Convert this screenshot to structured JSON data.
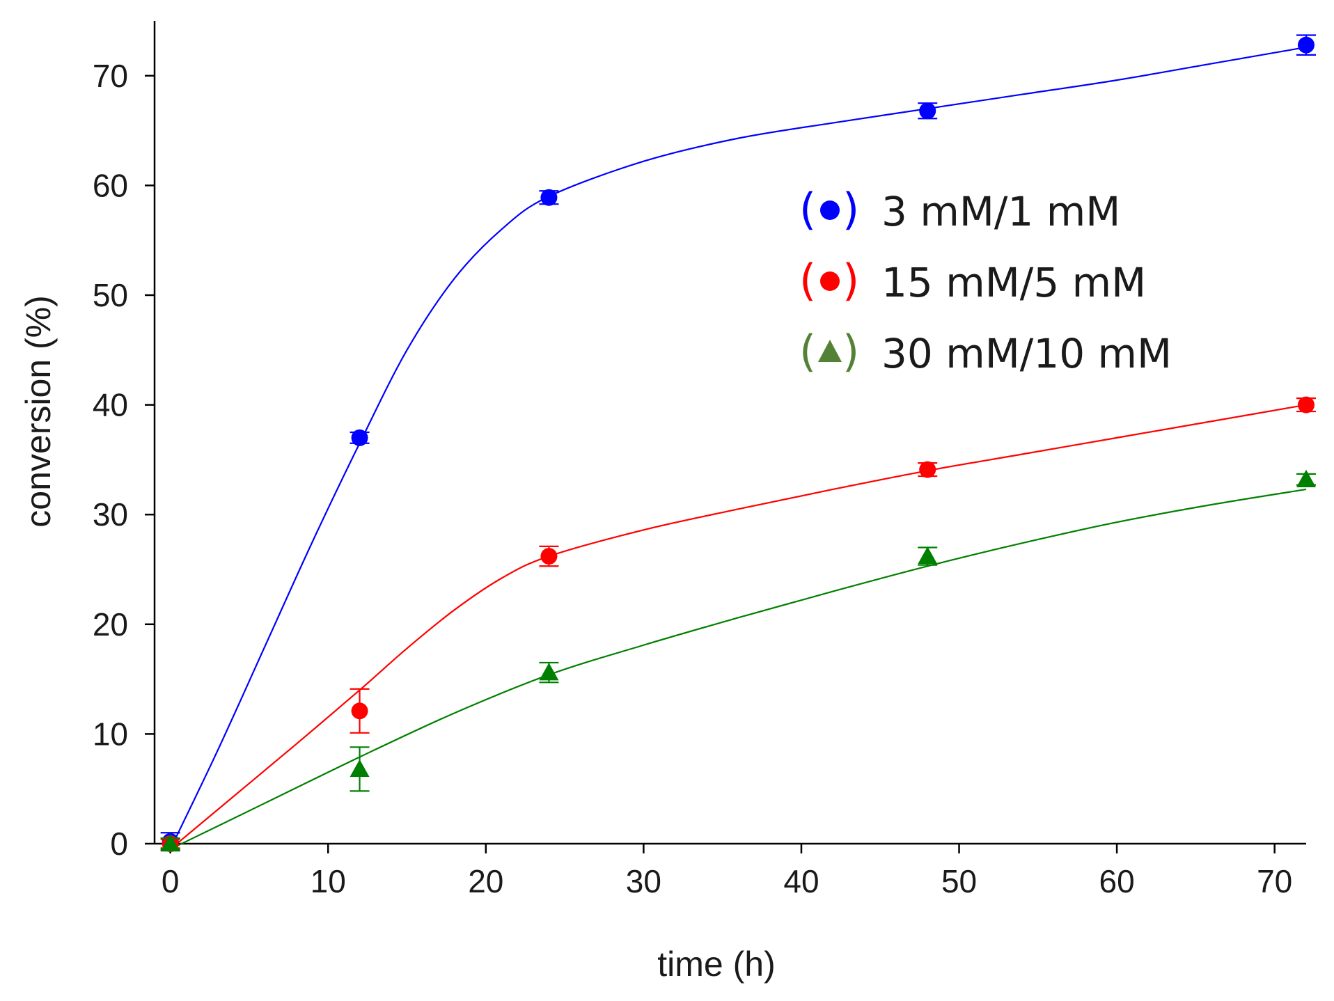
{
  "chart_data": {
    "type": "line",
    "title": "",
    "xlabel": "time (h)",
    "ylabel": "conversion (%)",
    "xlim": [
      -1,
      72
    ],
    "ylim": [
      0,
      75
    ],
    "xticks": [
      0,
      10,
      20,
      30,
      40,
      50,
      60,
      70
    ],
    "yticks": [
      0,
      10,
      20,
      30,
      40,
      50,
      60,
      70
    ],
    "xtick_labels": [
      "0",
      "10",
      "20",
      "30",
      "40",
      "50",
      "60",
      "70"
    ],
    "ytick_labels": [
      "0",
      "10",
      "20",
      "30",
      "40",
      "50",
      "60",
      "70"
    ],
    "grid": false,
    "legend_position": "upper-right, inside plot",
    "series": [
      {
        "name": "3 mM/1 mM",
        "color": "#0000ff",
        "marker": "circle",
        "x": [
          0,
          12,
          24,
          48,
          72
        ],
        "y": [
          0.2,
          37,
          58.9,
          66.8,
          72.8
        ],
        "error": [
          0.8,
          0.5,
          0.6,
          0.7,
          0.9
        ],
        "fit_x": [
          0,
          3,
          6,
          9,
          12,
          15,
          18,
          21,
          24,
          30,
          36,
          42,
          48,
          54,
          60,
          66,
          72
        ],
        "fit_y": [
          -0.5,
          8.5,
          18,
          27.5,
          36.5,
          45,
          51.5,
          56,
          59,
          62.2,
          64.3,
          65.7,
          67,
          68.3,
          69.6,
          71.1,
          72.6
        ]
      },
      {
        "name": "15 mM/5 mM",
        "color": "#ff0000",
        "marker": "circle",
        "x": [
          0,
          12,
          24,
          48,
          72
        ],
        "y": [
          0,
          12.1,
          26.2,
          34.1,
          40
        ],
        "error": [
          0.4,
          2.0,
          0.9,
          0.6,
          0.6
        ],
        "fit_x": [
          0,
          4,
          8,
          12,
          15,
          18,
          21,
          24,
          30,
          36,
          42,
          48,
          54,
          60,
          66,
          72
        ],
        "fit_y": [
          -0.5,
          4.3,
          9.1,
          14,
          17.8,
          21.3,
          24.2,
          26.2,
          28.6,
          30.5,
          32.3,
          34,
          35.5,
          37,
          38.5,
          40
        ]
      },
      {
        "name": "30 mM/10 mM",
        "color": "#008000",
        "marker": "triangle",
        "x": [
          0,
          12,
          24,
          48,
          72
        ],
        "y": [
          0,
          6.8,
          15.6,
          26.2,
          33.2
        ],
        "error": [
          0.5,
          2.0,
          0.9,
          0.8,
          0.5
        ],
        "fit_x": [
          0,
          6,
          12,
          18,
          24,
          30,
          36,
          42,
          48,
          54,
          60,
          66,
          72
        ],
        "fit_y": [
          -0.5,
          3.7,
          7.9,
          11.9,
          15.4,
          18.1,
          20.6,
          23,
          25.3,
          27.4,
          29.3,
          30.9,
          32.3
        ]
      }
    ]
  },
  "legend": {
    "entries": [
      {
        "label": "3 mM/1 mM",
        "color": "#0000ff",
        "marker": "circle"
      },
      {
        "label": "15 mM/5 mM",
        "color": "#ff0000",
        "marker": "circle"
      },
      {
        "label": "30 mM/10 mM",
        "color": "#538135",
        "marker": "triangle"
      }
    ]
  }
}
